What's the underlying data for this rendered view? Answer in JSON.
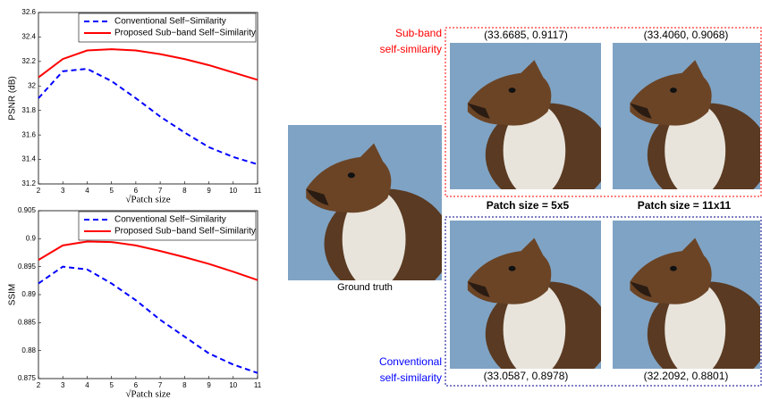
{
  "chart_data": [
    {
      "type": "line",
      "x_label": "√Patch size",
      "y_label": "PSNR (dB)",
      "x": [
        2,
        3,
        4,
        5,
        6,
        7,
        8,
        9,
        10,
        11
      ],
      "xlim": [
        2,
        11
      ],
      "xticks": [
        2,
        3,
        4,
        5,
        6,
        7,
        8,
        9,
        10,
        11
      ],
      "ylim": [
        31.2,
        32.6
      ],
      "yticks": [
        31.2,
        31.4,
        31.6,
        31.8,
        32,
        32.2,
        32.4,
        32.6
      ],
      "legend": "upper right",
      "series": [
        {
          "name": "Conventional Self−Similarity",
          "color": "#0000ff",
          "dash": true,
          "values": [
            31.9,
            32.12,
            32.14,
            32.04,
            31.9,
            31.75,
            31.62,
            31.5,
            31.42,
            31.36
          ]
        },
        {
          "name": "Proposed Sub−band Self−Similarity",
          "color": "#ff0000",
          "dash": false,
          "values": [
            32.07,
            32.22,
            32.29,
            32.3,
            32.29,
            32.26,
            32.22,
            32.17,
            32.11,
            32.05
          ]
        }
      ]
    },
    {
      "type": "line",
      "x_label": "√Patch size",
      "y_label": "SSIM",
      "x": [
        2,
        3,
        4,
        5,
        6,
        7,
        8,
        9,
        10,
        11
      ],
      "xlim": [
        2,
        11
      ],
      "xticks": [
        2,
        3,
        4,
        5,
        6,
        7,
        8,
        9,
        10,
        11
      ],
      "ylim": [
        0.875,
        0.905
      ],
      "yticks": [
        0.875,
        0.88,
        0.885,
        0.89,
        0.895,
        0.9,
        0.905
      ],
      "legend": "upper right",
      "series": [
        {
          "name": "Conventional Self−Similarity",
          "color": "#0000ff",
          "dash": true,
          "values": [
            0.892,
            0.895,
            0.8945,
            0.892,
            0.889,
            0.8855,
            0.8825,
            0.8795,
            0.8775,
            0.876
          ]
        },
        {
          "name": "Proposed Sub−band Self−Similarity",
          "color": "#ff0000",
          "dash": false,
          "values": [
            0.8962,
            0.8988,
            0.8995,
            0.8994,
            0.8988,
            0.8978,
            0.8967,
            0.8955,
            0.8941,
            0.8926
          ]
        }
      ]
    }
  ],
  "figure": {
    "ground_truth": "Ground truth",
    "subband_label": [
      "Sub-band",
      "self-similarity"
    ],
    "conventional_label": [
      "Conventional",
      "self-similarity"
    ],
    "patch_labels": [
      "Patch size = 5x5",
      "Patch size = 11x11"
    ],
    "subband_scores": [
      "(33.6685, 0.9117)",
      "(33.4060, 0.9068)"
    ],
    "conventional_scores": [
      "(33.0587, 0.8978)",
      "(32.2092, 0.8801)"
    ]
  }
}
